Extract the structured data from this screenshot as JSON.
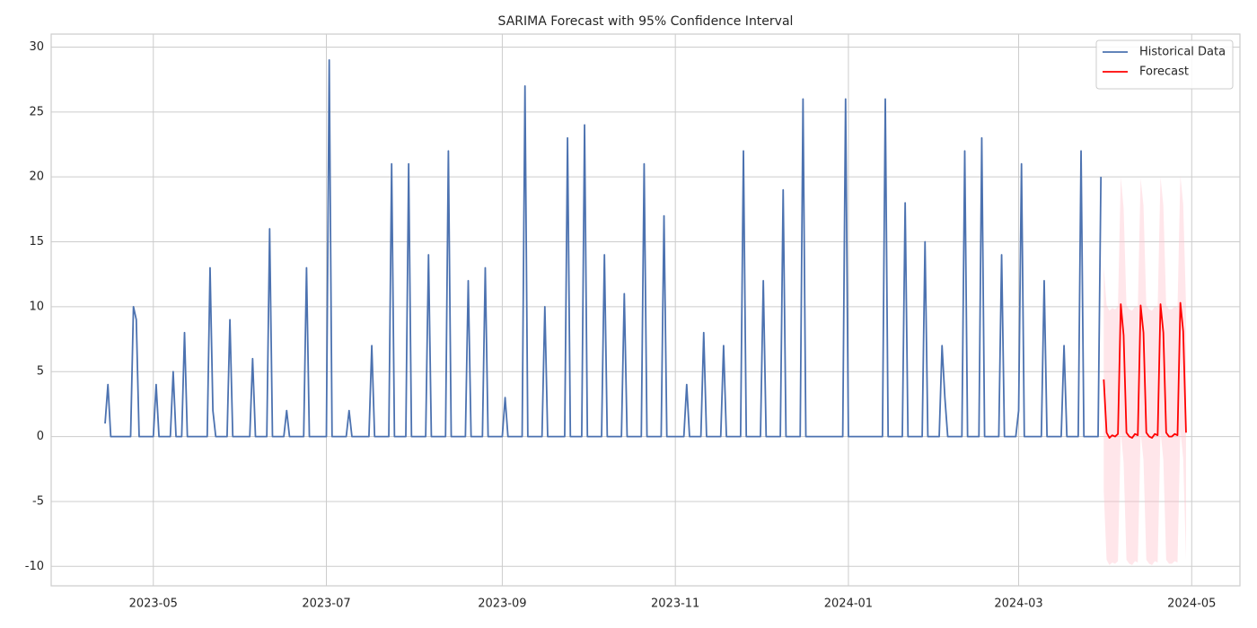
{
  "chart_data": {
    "type": "line",
    "title": "SARIMA Forecast with 95% Confidence Interval",
    "xlim": [
      -36,
      383
    ],
    "xticks": [
      {
        "value": 0,
        "label": "2023-05"
      },
      {
        "value": 61,
        "label": "2023-07"
      },
      {
        "value": 123,
        "label": "2023-09"
      },
      {
        "value": 184,
        "label": "2023-11"
      },
      {
        "value": 245,
        "label": "2024-01"
      },
      {
        "value": 305,
        "label": "2024-03"
      },
      {
        "value": 366,
        "label": "2024-05"
      }
    ],
    "ylim": [
      -11.5,
      31
    ],
    "yticks": [
      -10,
      -5,
      0,
      5,
      10,
      15,
      20,
      25,
      30
    ],
    "grid": true,
    "legend": "upper right",
    "series": [
      {
        "name": "Historical Data",
        "color": "#4c72b0",
        "x": [
          -17,
          -16,
          -15,
          -8,
          -7,
          -6,
          -5,
          0,
          1,
          2,
          6,
          7,
          8,
          10,
          11,
          12,
          19,
          20,
          21,
          22,
          26,
          27,
          28,
          34,
          35,
          36,
          40,
          41,
          42,
          46,
          47,
          48,
          53,
          54,
          55,
          61,
          62,
          63,
          68,
          69,
          70,
          76,
          77,
          78,
          83,
          84,
          85,
          89,
          90,
          91,
          96,
          97,
          98,
          103,
          104,
          105,
          110,
          111,
          112,
          116,
          117,
          118,
          123,
          124,
          125,
          130,
          131,
          132,
          137,
          138,
          139,
          145,
          146,
          147,
          151,
          152,
          153,
          158,
          159,
          160,
          165,
          166,
          167,
          172,
          173,
          174,
          179,
          180,
          181,
          187,
          188,
          189,
          193,
          194,
          195,
          200,
          201,
          202,
          207,
          208,
          209,
          214,
          215,
          216,
          221,
          222,
          223,
          228,
          229,
          230,
          243,
          244,
          245,
          257,
          258,
          259,
          264,
          265,
          266,
          271,
          272,
          273,
          277,
          278,
          279,
          280,
          285,
          286,
          287,
          291,
          292,
          293,
          298,
          299,
          300,
          304,
          305,
          306,
          307,
          313,
          314,
          315,
          320,
          321,
          322,
          326,
          327,
          328,
          333,
          334
        ],
        "values": [
          1,
          4,
          0,
          0,
          10,
          9,
          0,
          0,
          4,
          0,
          0,
          5,
          0,
          0,
          8,
          0,
          0,
          13,
          2,
          0,
          0,
          9,
          0,
          0,
          6,
          0,
          0,
          16,
          0,
          0,
          2,
          0,
          0,
          13,
          0,
          0,
          29,
          0,
          0,
          2,
          0,
          0,
          7,
          0,
          0,
          21,
          0,
          0,
          21,
          0,
          0,
          14,
          0,
          0,
          22,
          0,
          0,
          12,
          0,
          0,
          13,
          0,
          0,
          3,
          0,
          0,
          27,
          0,
          0,
          10,
          0,
          0,
          23,
          0,
          0,
          24,
          0,
          0,
          14,
          0,
          0,
          11,
          0,
          0,
          21,
          0,
          0,
          17,
          0,
          0,
          4,
          0,
          0,
          8,
          0,
          0,
          7,
          0,
          0,
          22,
          0,
          0,
          12,
          0,
          0,
          19,
          0,
          0,
          26,
          0,
          0,
          26,
          0,
          0,
          26,
          0,
          0,
          18,
          0,
          0,
          15,
          0,
          0,
          7,
          3,
          0,
          0,
          22,
          0,
          0,
          23,
          0,
          0,
          14,
          0,
          0,
          2,
          21,
          0,
          0,
          12,
          0,
          0,
          7,
          0,
          0,
          22,
          0,
          0,
          20
        ]
      },
      {
        "name": "Forecast",
        "color": "red",
        "band_color": "#ffc0cb",
        "x": [
          335,
          336,
          337,
          338,
          339,
          340,
          341,
          342,
          343,
          344,
          345,
          346,
          347,
          348,
          349,
          350,
          351,
          352,
          353,
          354,
          355,
          356,
          357,
          358,
          359,
          360,
          361,
          362,
          363,
          364
        ],
        "values": [
          4.4,
          0.3,
          -0.1,
          0.1,
          0,
          0.2,
          10.2,
          7.8,
          0.3,
          0,
          -0.1,
          0.2,
          0.1,
          10.1,
          8,
          0.3,
          0,
          -0.1,
          0.2,
          0.1,
          10.2,
          8,
          0.3,
          0,
          0,
          0.2,
          0.1,
          10.3,
          8.1,
          0.3
        ],
        "lower": [
          -4.3,
          -9.5,
          -9.9,
          -9.7,
          -9.8,
          -9.6,
          0.4,
          -2,
          -9.5,
          -9.8,
          -9.9,
          -9.6,
          -9.7,
          0.3,
          -1.8,
          -9.5,
          -9.8,
          -9.9,
          -9.6,
          -9.7,
          0.4,
          -1.8,
          -9.5,
          -9.8,
          -9.8,
          -9.6,
          -9.7,
          0.5,
          -1.7,
          -9.5
        ],
        "upper": [
          13.1,
          10.1,
          9.7,
          9.9,
          9.8,
          10,
          20,
          17.6,
          10.1,
          9.8,
          9.7,
          10,
          9.9,
          19.9,
          17.8,
          10.1,
          9.8,
          9.7,
          10,
          9.9,
          20,
          17.8,
          10.1,
          9.8,
          9.8,
          10,
          9.9,
          20.1,
          17.9,
          10.1
        ]
      }
    ]
  }
}
